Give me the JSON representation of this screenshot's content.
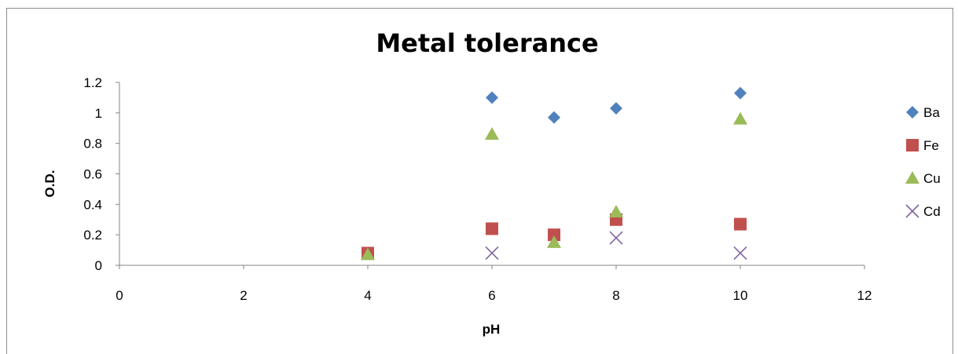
{
  "chart_data": {
    "type": "scatter",
    "title": "Metal tolerance",
    "xlabel": "pH",
    "ylabel": "O.D.",
    "xlim": [
      0,
      12
    ],
    "ylim": [
      0,
      1.2
    ],
    "xticks": [
      0,
      2,
      4,
      6,
      8,
      10,
      12
    ],
    "yticks": [
      0,
      0.2,
      0.4,
      0.6,
      0.8,
      1,
      1.2
    ],
    "grid": false,
    "legend_position": "right",
    "series": [
      {
        "name": "Ba",
        "marker": "diamond",
        "color": "#4f81bd",
        "points": [
          [
            6,
            1.1
          ],
          [
            7,
            0.97
          ],
          [
            8,
            1.03
          ],
          [
            10,
            1.13
          ]
        ]
      },
      {
        "name": "Fe",
        "marker": "square",
        "color": "#c0504d",
        "points": [
          [
            4,
            0.08
          ],
          [
            6,
            0.24
          ],
          [
            7,
            0.2
          ],
          [
            8,
            0.3
          ],
          [
            10,
            0.27
          ]
        ]
      },
      {
        "name": "Cu",
        "marker": "triangle",
        "color": "#9bbb59",
        "points": [
          [
            4,
            0.07
          ],
          [
            6,
            0.86
          ],
          [
            7,
            0.15
          ],
          [
            8,
            0.35
          ],
          [
            10,
            0.96
          ]
        ]
      },
      {
        "name": "Cd",
        "marker": "x",
        "color": "#8064a2",
        "points": [
          [
            6,
            0.08
          ],
          [
            8,
            0.18
          ],
          [
            10,
            0.08
          ]
        ]
      }
    ]
  }
}
